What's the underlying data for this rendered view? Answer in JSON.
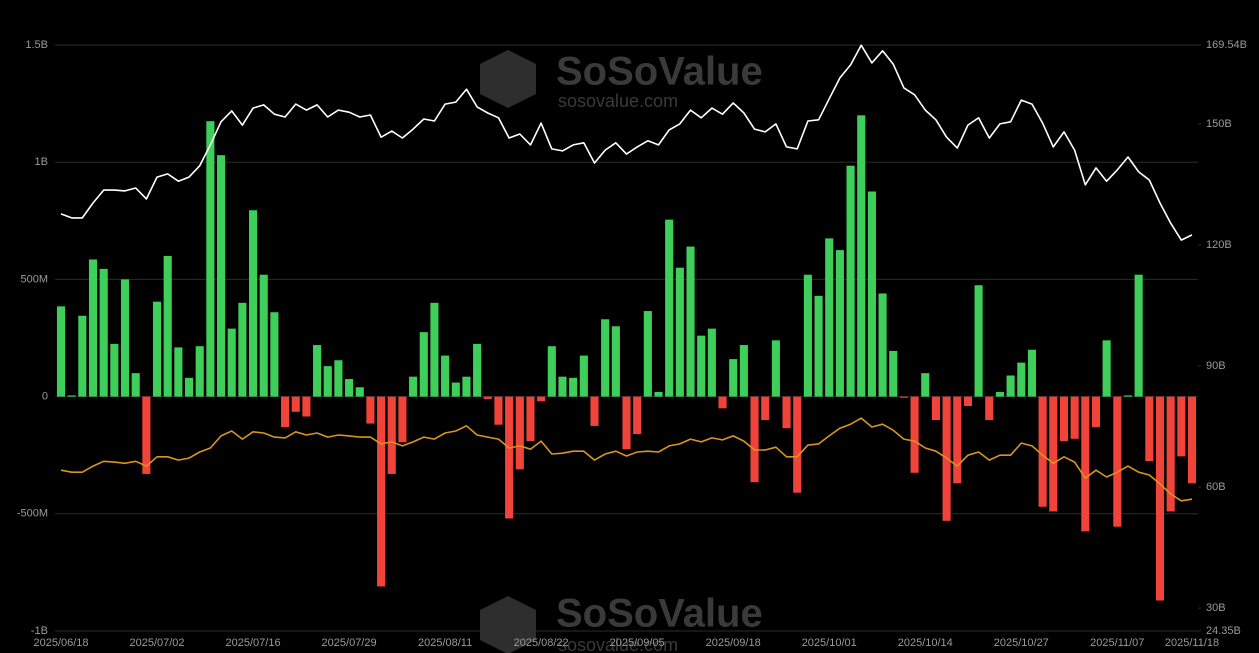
{
  "chart_data": {
    "type": "bar_line",
    "watermark": {
      "brand": "SoSoValue",
      "site": "sosovalue.com"
    },
    "categories": [
      "2025/06/18",
      null,
      null,
      null,
      null,
      null,
      null,
      null,
      null,
      "2025/07/02",
      null,
      null,
      null,
      null,
      null,
      null,
      null,
      null,
      "2025/07/16",
      null,
      null,
      null,
      null,
      null,
      null,
      null,
      null,
      "2025/07/29",
      null,
      null,
      null,
      null,
      null,
      null,
      null,
      null,
      "2025/08/11",
      null,
      null,
      null,
      null,
      null,
      null,
      null,
      null,
      "2025/08/22",
      null,
      null,
      null,
      null,
      null,
      null,
      null,
      null,
      "2025/09/05",
      null,
      null,
      null,
      null,
      null,
      null,
      null,
      null,
      "2025/09/18",
      null,
      null,
      null,
      null,
      null,
      null,
      null,
      null,
      "2025/10/01",
      null,
      null,
      null,
      null,
      null,
      null,
      null,
      null,
      "2025/10/14",
      null,
      null,
      null,
      null,
      null,
      null,
      null,
      null,
      "2025/10/27",
      null,
      null,
      null,
      null,
      null,
      null,
      null,
      null,
      "2025/11/07",
      null,
      null,
      null,
      null,
      null,
      null,
      "2025/11/18"
    ],
    "ylim": [
      -1000,
      1500
    ],
    "yticks": [
      {
        "value": -1000,
        "label": "-1B"
      },
      {
        "value": -500,
        "label": "-500M"
      },
      0,
      {
        "value": 500,
        "label": "500M"
      },
      {
        "value": 1000,
        "label": "1B"
      },
      {
        "value": 1500,
        "label": "1.5B"
      }
    ],
    "y2lim": [
      24.35,
      169.54
    ],
    "y2ticks": [
      {
        "value": 24.35,
        "label": "24.35B"
      },
      {
        "value": 30,
        "label": "30B"
      },
      {
        "value": 60,
        "label": "60B"
      },
      {
        "value": 90,
        "label": "90B"
      },
      {
        "value": 120,
        "label": "120B"
      },
      {
        "value": 150,
        "label": "150B"
      },
      {
        "value": 169.54,
        "label": "169.54B"
      }
    ],
    "grid": true,
    "series": [
      {
        "type": "bar",
        "color_positive": "#3ecf5a",
        "color_negative": "#f0433a",
        "values": [
          385,
          5,
          345,
          585,
          545,
          225,
          500,
          100,
          -330,
          405,
          600,
          210,
          80,
          215,
          1175,
          1030,
          290,
          400,
          795,
          520,
          360,
          -130,
          -65,
          -85,
          220,
          130,
          155,
          75,
          40,
          -115,
          -810,
          -330,
          -195,
          85,
          275,
          400,
          175,
          60,
          85,
          225,
          -10,
          -120,
          -520,
          -310,
          -190,
          -20,
          215,
          85,
          80,
          175,
          -125,
          330,
          300,
          -225,
          -160,
          365,
          20,
          755,
          550,
          640,
          260,
          290,
          -50,
          160,
          220,
          -365,
          -100,
          240,
          -135,
          -410,
          520,
          430,
          675,
          625,
          985,
          1200,
          875,
          440,
          195,
          -5,
          -325,
          100,
          -100,
          -530,
          -370,
          -40,
          475,
          -100,
          20,
          90,
          145,
          200,
          -470,
          -490,
          -190,
          -180,
          -575,
          -130,
          240,
          -555,
          5,
          520,
          -275,
          -870,
          -490,
          -255,
          -370
        ]
      },
      {
        "type": "line",
        "axis": "y2",
        "color": "#ffffff",
        "values": [
          127.7,
          126.7,
          126.7,
          130.4,
          133.6,
          133.6,
          133.4,
          134.1,
          131.4,
          136.8,
          137.6,
          135.8,
          136.8,
          139.6,
          144.8,
          150.5,
          153.2,
          149.7,
          153.9,
          154.7,
          152.4,
          151.7,
          154.9,
          153.4,
          154.7,
          151.7,
          153.4,
          152.9,
          151.7,
          152.2,
          146.7,
          148.2,
          146.5,
          148.7,
          151.2,
          150.7,
          154.9,
          155.4,
          158.6,
          154.2,
          152.7,
          151.5,
          146.5,
          147.5,
          144.8,
          150.2,
          143.8,
          143.3,
          144.8,
          145.3,
          140.3,
          143.5,
          145.3,
          142.5,
          144.3,
          145.8,
          144.8,
          148.5,
          150.0,
          153.4,
          151.5,
          153.9,
          152.4,
          155.2,
          152.7,
          148.7,
          148.0,
          150.0,
          144.3,
          143.8,
          150.7,
          151.0,
          156.2,
          161.4,
          164.6,
          169.5,
          165.1,
          168.1,
          164.8,
          158.9,
          157.2,
          153.4,
          151.0,
          146.7,
          144.0,
          149.7,
          151.5,
          146.5,
          150.0,
          150.5,
          155.9,
          154.9,
          150.2,
          144.3,
          148.0,
          143.5,
          134.9,
          139.1,
          135.8,
          138.6,
          141.8,
          138.1,
          136.1,
          130.4,
          125.4,
          121.2,
          122.5
        ]
      },
      {
        "type": "line",
        "axis": "y2",
        "color": "#d99420",
        "values": [
          64.2,
          63.7,
          63.7,
          65.2,
          66.4,
          66.2,
          65.9,
          66.4,
          65.2,
          67.5,
          67.5,
          66.7,
          67.2,
          68.7,
          69.7,
          72.7,
          73.9,
          71.9,
          73.7,
          73.4,
          72.4,
          72.2,
          73.7,
          72.9,
          73.4,
          72.4,
          72.9,
          72.7,
          72.4,
          72.4,
          70.7,
          71.2,
          70.2,
          71.2,
          72.4,
          71.9,
          73.4,
          73.9,
          75.2,
          72.9,
          72.4,
          71.9,
          69.7,
          70.2,
          69.4,
          71.4,
          68.2,
          68.4,
          68.9,
          68.9,
          66.7,
          68.2,
          68.9,
          67.7,
          68.7,
          68.9,
          68.7,
          70.2,
          70.7,
          71.9,
          71.2,
          72.2,
          71.7,
          72.7,
          71.4,
          69.2,
          69.2,
          69.9,
          67.5,
          67.5,
          70.4,
          70.7,
          72.7,
          74.6,
          75.6,
          77.1,
          74.9,
          75.6,
          74.1,
          71.9,
          71.4,
          69.7,
          68.9,
          67.2,
          65.2,
          67.9,
          68.7,
          66.7,
          67.9,
          67.9,
          70.9,
          70.2,
          67.9,
          65.9,
          67.5,
          66.2,
          62.2,
          64.2,
          62.5,
          63.7,
          65.2,
          63.7,
          63.0,
          60.8,
          58.3,
          56.6,
          57.0
        ]
      }
    ]
  }
}
